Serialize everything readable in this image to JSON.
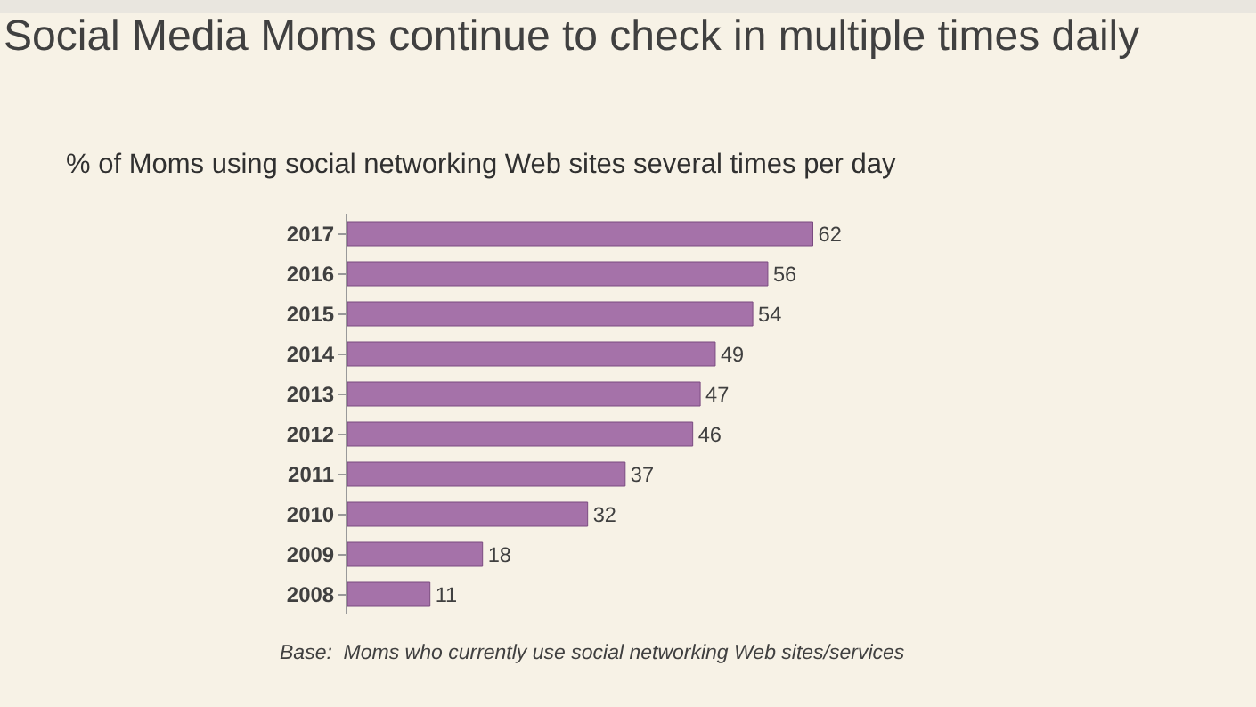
{
  "chart_data": {
    "type": "bar",
    "orientation": "horizontal",
    "title": "Social Media Moms continue to check in multiple times daily",
    "subtitle": "% of Moms using social networking Web sites several times per day",
    "categories": [
      "2017",
      "2016",
      "2015",
      "2014",
      "2013",
      "2012",
      "2011",
      "2010",
      "2009",
      "2008"
    ],
    "values": [
      62,
      56,
      54,
      49,
      47,
      46,
      37,
      32,
      18,
      11
    ],
    "color": "#a572a9",
    "data_labels": true,
    "grid": false,
    "legend": false,
    "tick_labels": "y",
    "annotations": [
      "Base:  Moms who currently use social networking Web sites/services"
    ]
  }
}
